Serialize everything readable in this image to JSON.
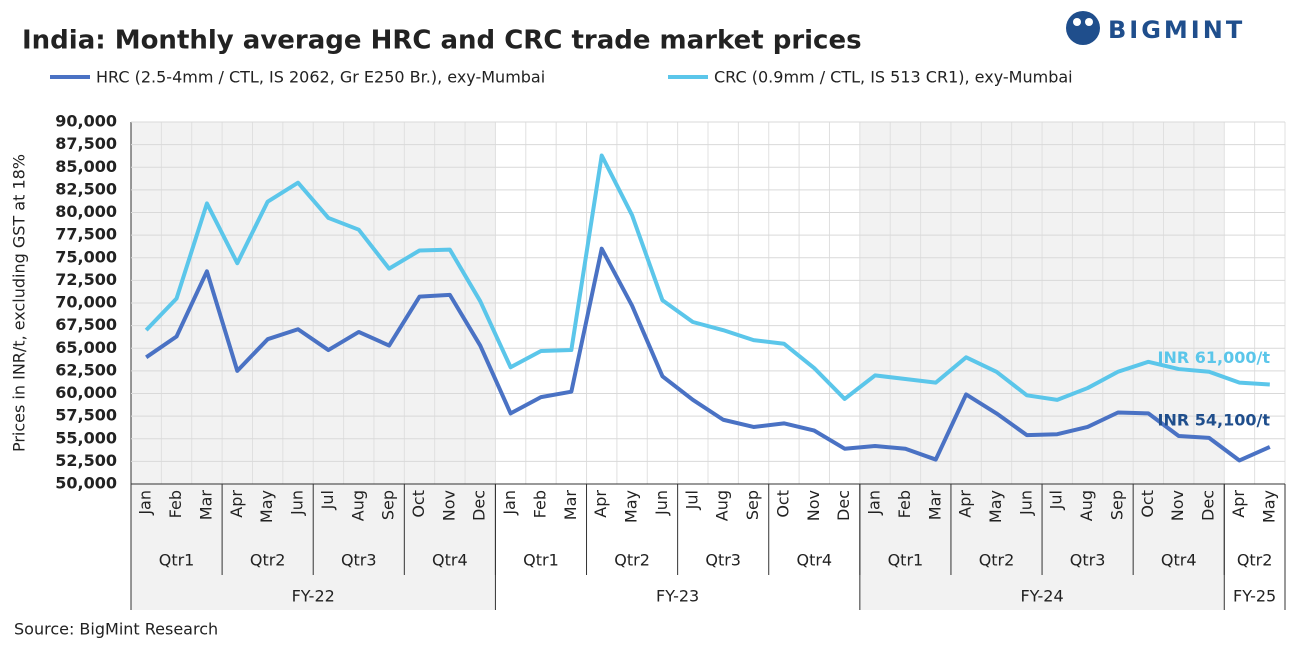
{
  "chart_data": {
    "type": "line",
    "title": "India: Monthly average HRC and CRC trade market prices",
    "logo": "BIGMINT",
    "y_label": "Prices in INR/t, excluding GST at 18%",
    "source": "Source: BigMint Research",
    "ylim": [
      50000,
      90000
    ],
    "yticks": [
      {
        "value": 50000,
        "label": "50,000"
      },
      {
        "value": 52500,
        "label": "52,500"
      },
      {
        "value": 55000,
        "label": "55,000"
      },
      {
        "value": 57500,
        "label": "57,500"
      },
      {
        "value": 60000,
        "label": "60,000"
      },
      {
        "value": 62500,
        "label": "62,500"
      },
      {
        "value": 65000,
        "label": "65,000"
      },
      {
        "value": 67500,
        "label": "67,500"
      },
      {
        "value": 70000,
        "label": "70,000"
      },
      {
        "value": 72500,
        "label": "72,500"
      },
      {
        "value": 75000,
        "label": "75,000"
      },
      {
        "value": 77500,
        "label": "77,500"
      },
      {
        "value": 80000,
        "label": "80,000"
      },
      {
        "value": 82500,
        "label": "82,500"
      },
      {
        "value": 85000,
        "label": "85,000"
      },
      {
        "value": 87500,
        "label": "87,500"
      },
      {
        "value": 90000,
        "label": "90,000"
      }
    ],
    "grid": true,
    "fiscal_years": [
      {
        "label": "FY-22",
        "quarters": [
          {
            "label": "Qtr1",
            "months": [
              "Jan",
              "Feb",
              "Mar"
            ]
          },
          {
            "label": "Qtr2",
            "months": [
              "Apr",
              "May",
              "Jun"
            ]
          },
          {
            "label": "Qtr3",
            "months": [
              "Jul",
              "Aug",
              "Sep"
            ]
          },
          {
            "label": "Qtr4",
            "months": [
              "Oct",
              "Nov",
              "Dec"
            ]
          }
        ]
      },
      {
        "label": "FY-23",
        "quarters": [
          {
            "label": "Qtr1",
            "months": [
              "Jan",
              "Feb",
              "Mar"
            ]
          },
          {
            "label": "Qtr2",
            "months": [
              "Apr",
              "May",
              "Jun"
            ]
          },
          {
            "label": "Qtr3",
            "months": [
              "Jul",
              "Aug",
              "Sep"
            ]
          },
          {
            "label": "Qtr4",
            "months": [
              "Oct",
              "Nov",
              "Dec"
            ]
          }
        ]
      },
      {
        "label": "FY-24",
        "quarters": [
          {
            "label": "Qtr1",
            "months": [
              "Jan",
              "Feb",
              "Mar"
            ]
          },
          {
            "label": "Qtr2",
            "months": [
              "Apr",
              "May",
              "Jun"
            ]
          },
          {
            "label": "Qtr3",
            "months": [
              "Jul",
              "Aug",
              "Sep"
            ]
          },
          {
            "label": "Qtr4",
            "months": [
              "Oct",
              "Nov",
              "Dec"
            ]
          }
        ]
      },
      {
        "label": "FY-25",
        "quarters": [
          {
            "label": "Qtr2",
            "months": [
              "Apr",
              "May"
            ]
          }
        ]
      }
    ],
    "series": [
      {
        "name": "HRC (2.5-4mm / CTL, IS 2062, Gr E250 Br.), exy-Mumbai",
        "color": "#4a72c4",
        "values": [
          64000,
          66300,
          73500,
          62500,
          66000,
          67100,
          64800,
          66800,
          65300,
          70700,
          70900,
          65300,
          57800,
          59600,
          60200,
          76000,
          69700,
          61900,
          59300,
          57100,
          56300,
          56700,
          55900,
          53900,
          54200,
          53900,
          52700,
          59900,
          57800,
          55400,
          55500,
          56300,
          57900,
          57800,
          55300,
          55100,
          52600,
          54100
        ],
        "end_label": "INR 54,100/t",
        "end_label_color": "#1f4e8c"
      },
      {
        "name": "CRC (0.9mm / CTL, IS 513 CR1), exy-Mumbai",
        "color": "#5bc6ea",
        "values": [
          67000,
          70500,
          81000,
          74400,
          81200,
          83300,
          79400,
          78100,
          73800,
          75800,
          75900,
          70200,
          62900,
          64700,
          64800,
          86300,
          79700,
          70300,
          67900,
          67000,
          65900,
          65500,
          62800,
          59400,
          62000,
          61600,
          61200,
          64000,
          62400,
          59800,
          59300,
          60600,
          62400,
          63500,
          62700,
          62400,
          61200,
          61000
        ],
        "end_label": "INR 61,000/t",
        "end_label_color": "#5bc6ea"
      }
    ]
  }
}
